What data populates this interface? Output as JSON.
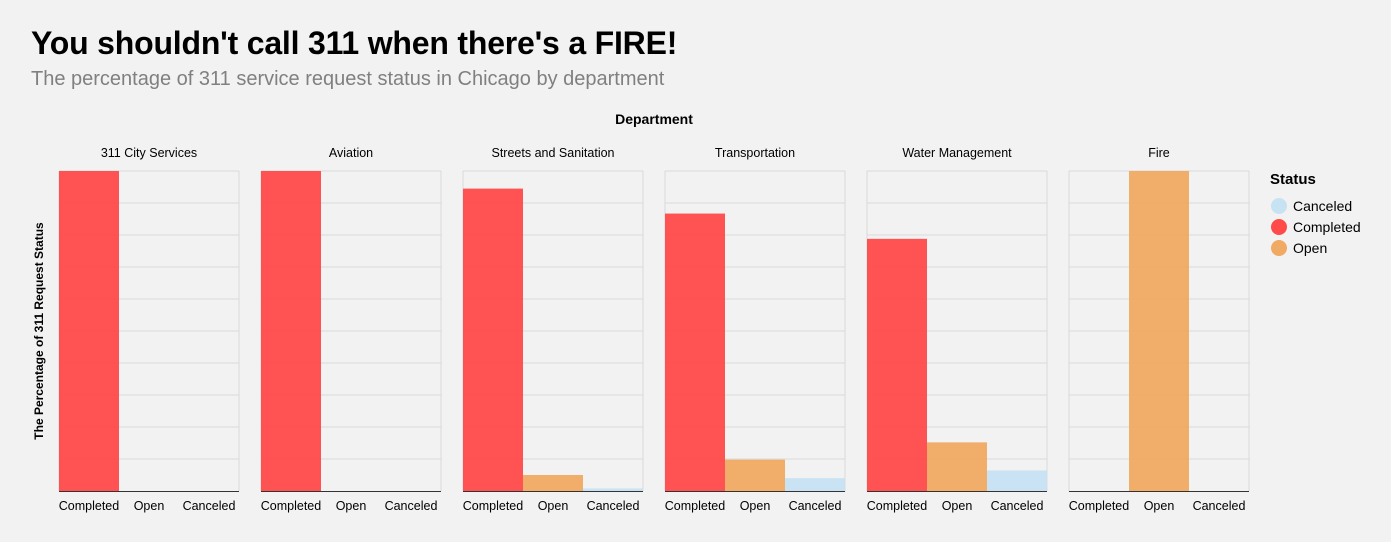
{
  "title": "You shouldn't call 311 when there's a FIRE!",
  "subtitle": "The percentage of 311 service request status in Chicago by department",
  "legend": {
    "title": "Status",
    "items": [
      {
        "label": "Canceled",
        "color": "#c6e2f3"
      },
      {
        "label": "Completed",
        "color": "#ff4a4a"
      },
      {
        "label": "Open",
        "color": "#f0aa63"
      }
    ]
  },
  "chart_data": {
    "type": "bar",
    "facet_title": "Department",
    "ylabel": "The Percentage of 311 Request Status",
    "ylim": [
      0,
      1
    ],
    "grid": true,
    "legend_position": "right",
    "categories": [
      "Completed",
      "Open",
      "Canceled"
    ],
    "colors": {
      "Completed": "#ff4a4a",
      "Open": "#f0aa63",
      "Canceled": "#c6e2f3"
    },
    "panels": [
      {
        "department": "311 City Services",
        "values": [
          1.0,
          0.0,
          0.0
        ]
      },
      {
        "department": "Aviation",
        "values": [
          1.0,
          0.0,
          0.0
        ]
      },
      {
        "department": "Streets and Sanitation",
        "values": [
          0.945,
          0.05,
          0.008
        ]
      },
      {
        "department": "Transportation",
        "values": [
          0.867,
          0.098,
          0.04
        ]
      },
      {
        "department": "Water Management",
        "values": [
          0.788,
          0.152,
          0.064
        ]
      },
      {
        "department": "Fire",
        "values": [
          0.0,
          1.0,
          0.0
        ]
      }
    ]
  }
}
